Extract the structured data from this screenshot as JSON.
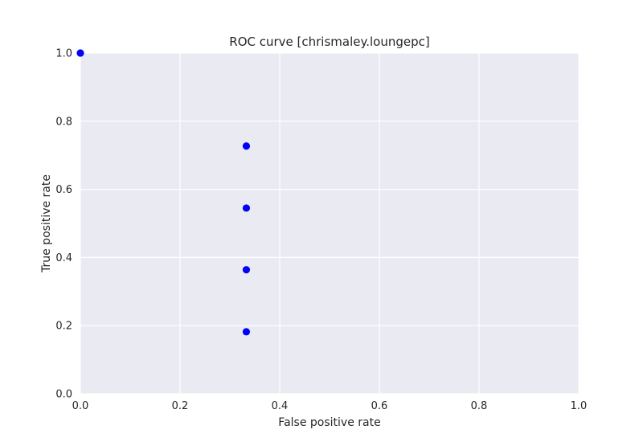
{
  "chart_data": {
    "type": "scatter",
    "title": "ROC curve [chrismaley.loungepc]",
    "xlabel": "False positive rate",
    "ylabel": "True positive rate",
    "xlim": [
      0.0,
      1.0
    ],
    "ylim": [
      0.0,
      1.0
    ],
    "xticks": [
      "0.0",
      "0.2",
      "0.4",
      "0.6",
      "0.8",
      "1.0"
    ],
    "yticks": [
      "0.0",
      "0.2",
      "0.4",
      "0.6",
      "0.8",
      "1.0"
    ],
    "grid": true,
    "legend": false,
    "series": [
      {
        "color": "#0000ff",
        "points": [
          {
            "x": 0.0,
            "y": 1.0
          },
          {
            "x": 0.333,
            "y": 0.727
          },
          {
            "x": 0.333,
            "y": 0.545
          },
          {
            "x": 0.333,
            "y": 0.364
          },
          {
            "x": 0.333,
            "y": 0.182
          }
        ]
      }
    ],
    "background_color": "#eaeaf2",
    "grid_color": "#ffffff"
  }
}
